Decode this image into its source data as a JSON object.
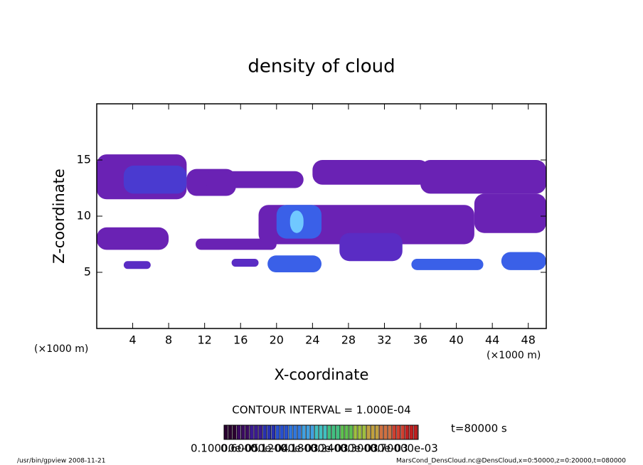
{
  "chart_data": {
    "type": "contour",
    "title": "density of cloud",
    "x_label": "X-coordinate",
    "y_label": "Z-coordinate",
    "x_unit": "(×1000 m)",
    "x_unit2": "(×1000 m)",
    "xlim": [
      0,
      50
    ],
    "ylim": [
      0,
      20
    ],
    "xticks": [
      4,
      8,
      12,
      16,
      20,
      24,
      28,
      32,
      36,
      40,
      44,
      48
    ],
    "yticks": [
      5,
      10,
      15
    ],
    "regions": [
      {
        "x": [
          0,
          10
        ],
        "z": [
          11.5,
          15.5
        ],
        "color": "#6a22b4"
      },
      {
        "x": [
          3,
          10
        ],
        "z": [
          12,
          14.5
        ],
        "color": "#4a3ad0"
      },
      {
        "x": [
          10,
          15.5
        ],
        "z": [
          11.8,
          14.2
        ],
        "color": "#6a22b4"
      },
      {
        "x": [
          12,
          23
        ],
        "z": [
          12.5,
          14
        ],
        "color": "#6a22b4"
      },
      {
        "x": [
          24,
          37
        ],
        "z": [
          12.8,
          15
        ],
        "color": "#6a22b4"
      },
      {
        "x": [
          36,
          50
        ],
        "z": [
          12,
          15
        ],
        "color": "#6a22b4"
      },
      {
        "x": [
          0,
          8
        ],
        "z": [
          7,
          9
        ],
        "color": "#6a22b4"
      },
      {
        "x": [
          11,
          20
        ],
        "z": [
          7,
          8
        ],
        "color": "#6a22b4"
      },
      {
        "x": [
          18,
          42
        ],
        "z": [
          7.5,
          11
        ],
        "color": "#6a22b4"
      },
      {
        "x": [
          27,
          34
        ],
        "z": [
          6,
          8.5
        ],
        "color": "#5a2cc4"
      },
      {
        "x": [
          20,
          25
        ],
        "z": [
          8,
          11
        ],
        "color": "#3a60e8"
      },
      {
        "x": [
          21.5,
          23
        ],
        "z": [
          8.5,
          10.5
        ],
        "color": "#70c8ff"
      },
      {
        "x": [
          42,
          50
        ],
        "z": [
          8.5,
          12
        ],
        "color": "#6a22b4"
      },
      {
        "x": [
          3,
          6
        ],
        "z": [
          5.3,
          6
        ],
        "color": "#5a2cc4"
      },
      {
        "x": [
          15,
          18
        ],
        "z": [
          5.5,
          6.2
        ],
        "color": "#5a2cc4"
      },
      {
        "x": [
          19,
          25
        ],
        "z": [
          5,
          6.5
        ],
        "color": "#3a60e8"
      },
      {
        "x": [
          35,
          43
        ],
        "z": [
          5.2,
          6.2
        ],
        "color": "#3a60e8"
      },
      {
        "x": [
          45,
          50
        ],
        "z": [
          5.2,
          6.8
        ],
        "color": "#3a60e8"
      }
    ],
    "contour_interval": "CONTOUR INTERVAL = 1.000E-04",
    "time_label": "t=80000 s",
    "colorbar": {
      "colors": [
        "#2a0030",
        "#3a0a60",
        "#3a1a90",
        "#2830b0",
        "#2850d0",
        "#3078e0",
        "#40a0e0",
        "#40c0c0",
        "#40c080",
        "#60c050",
        "#a0c040",
        "#c0a040",
        "#d07040",
        "#d04030",
        "#c02020"
      ],
      "labels": [
        "0.10000e-05",
        "0.60000e-04",
        "0.12000e-03",
        "0.18000e-03",
        "0.24000e-03",
        "0.30000e-03",
        "0.70000e-03"
      ]
    },
    "footer_left": "/usr/bin/gpview   2008-11-21",
    "footer_right": "MarsCond_DensCloud.nc@DensCloud,x=0:50000,z=0:20000,t=080000"
  }
}
